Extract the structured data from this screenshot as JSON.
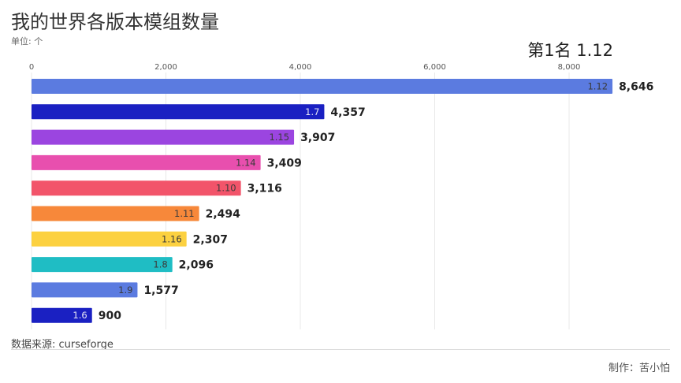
{
  "header": {
    "title": "我的世界各版本模组数量",
    "unit": "单位: 个",
    "rank_label": "第1名 1.12"
  },
  "footer": {
    "source": "数据来源: curseforge",
    "author": "制作：苦小怕"
  },
  "chart_data": {
    "type": "bar",
    "orientation": "horizontal",
    "title": "我的世界各版本模组数量",
    "categories": [
      "1.12",
      "1.7",
      "1.15",
      "1.14",
      "1.10",
      "1.11",
      "1.16",
      "1.8",
      "1.9",
      "1.6"
    ],
    "values": [
      8646,
      4357,
      3907,
      3409,
      3116,
      2494,
      2307,
      2096,
      1577,
      900
    ],
    "value_labels": [
      "8,646",
      "4,357",
      "3,907",
      "3,409",
      "3,116",
      "2,494",
      "2,307",
      "2,096",
      "1,577",
      "900"
    ],
    "colors": [
      "#5b7be0",
      "#1a20c2",
      "#9b45e0",
      "#e84fae",
      "#f2546a",
      "#f7883a",
      "#fcd140",
      "#1fbdc4",
      "#5b7be0",
      "#1a20c2"
    ],
    "xlim": [
      0,
      8800
    ],
    "x_ticks": [
      0,
      2000,
      4000,
      6000,
      8000
    ],
    "x_tick_labels": [
      "0",
      "2,000",
      "4,000",
      "6,000",
      "8,000"
    ],
    "axis_position": "top",
    "grid": true,
    "legend": "none"
  }
}
